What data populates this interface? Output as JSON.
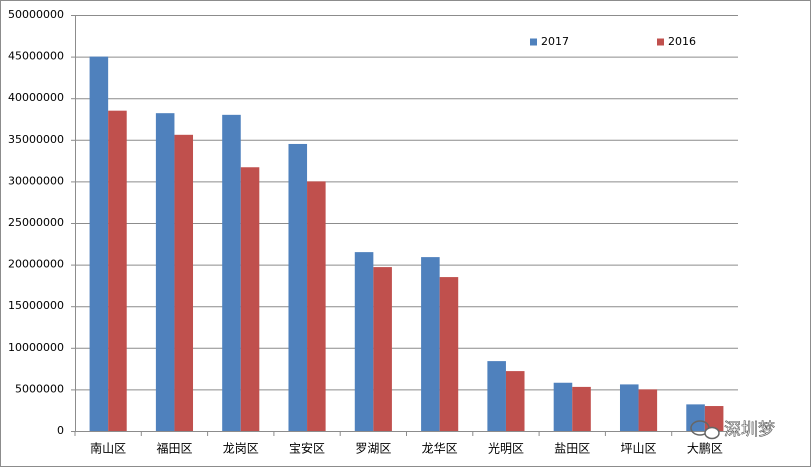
{
  "chart_data": {
    "type": "bar",
    "categories": [
      "南山区",
      "福田区",
      "龙岗区",
      "宝安区",
      "罗湖区",
      "龙华区",
      "光明区",
      "盐田区",
      "坪山区",
      "大鹏区"
    ],
    "series": [
      {
        "name": "2017",
        "color": "#4f81bd",
        "values": [
          45000000,
          38200000,
          38000000,
          34500000,
          21500000,
          20900000,
          8400000,
          5800000,
          5600000,
          3200000
        ]
      },
      {
        "name": "2016",
        "color": "#c0504d",
        "values": [
          38500000,
          35600000,
          31700000,
          30000000,
          19700000,
          18500000,
          7200000,
          5300000,
          5000000,
          3000000
        ]
      }
    ],
    "ylim": [
      0,
      50000000
    ],
    "yticks": [
      0,
      5000000,
      10000000,
      15000000,
      20000000,
      25000000,
      30000000,
      35000000,
      40000000,
      45000000,
      50000000
    ],
    "grid": true,
    "legend": "top-right"
  },
  "watermark": "深圳梦"
}
